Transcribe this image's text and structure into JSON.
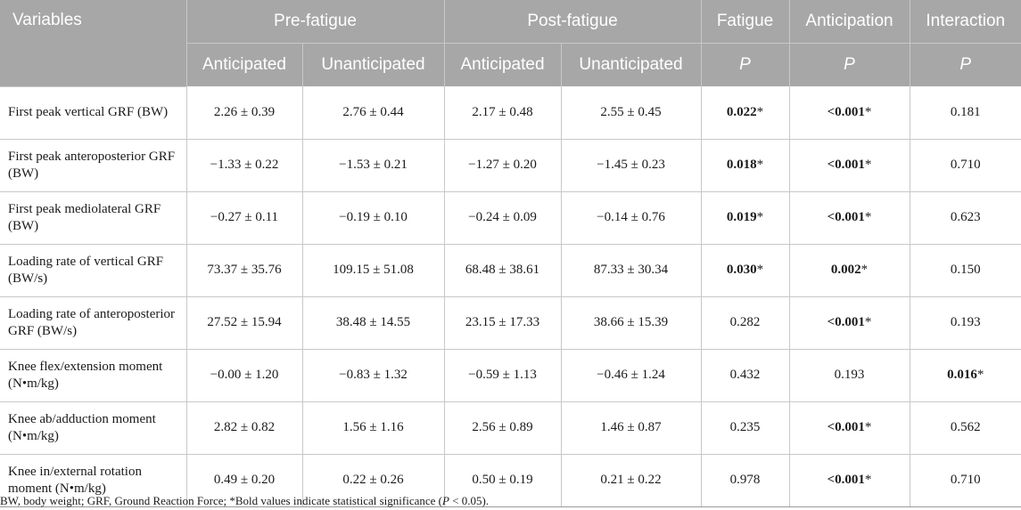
{
  "header": {
    "variables": "Variables",
    "pre_fatigue": "Pre-fatigue",
    "post_fatigue": "Post-fatigue",
    "fatigue": "Fatigue",
    "anticipation": "Anticipation",
    "interaction": "Interaction",
    "anticipated": "Anticipated",
    "unanticipated": "Unanticipated",
    "p": "P"
  },
  "rows": [
    {
      "variable": "First peak vertical GRF (BW)",
      "pre_ant": "2.26 ± 0.39",
      "pre_unant": "2.76 ± 0.44",
      "post_ant": "2.17 ± 0.48",
      "post_unant": "2.55 ± 0.45",
      "fatigue_p": "0.022",
      "fatigue_mark": "*",
      "anticipation_p": "<0.001",
      "anticipation_mark": "*",
      "interaction_p": "0.181",
      "interaction_mark": ""
    },
    {
      "variable": "First peak anteroposterior GRF (BW)",
      "pre_ant": "−1.33 ± 0.22",
      "pre_unant": "−1.53 ± 0.21",
      "post_ant": "−1.27 ± 0.20",
      "post_unant": "−1.45 ± 0.23",
      "fatigue_p": "0.018",
      "fatigue_mark": "*",
      "anticipation_p": "<0.001",
      "anticipation_mark": "*",
      "interaction_p": "0.710",
      "interaction_mark": ""
    },
    {
      "variable": "First peak mediolateral GRF (BW)",
      "pre_ant": "−0.27 ± 0.11",
      "pre_unant": "−0.19 ± 0.10",
      "post_ant": "−0.24 ± 0.09",
      "post_unant": "−0.14 ± 0.76",
      "fatigue_p": "0.019",
      "fatigue_mark": "*",
      "anticipation_p": "<0.001",
      "anticipation_mark": "*",
      "interaction_p": "0.623",
      "interaction_mark": ""
    },
    {
      "variable": "Loading rate of vertical GRF (BW/s)",
      "pre_ant": "73.37 ± 35.76",
      "pre_unant": "109.15 ± 51.08",
      "post_ant": "68.48 ± 38.61",
      "post_unant": "87.33 ± 30.34",
      "fatigue_p": "0.030",
      "fatigue_mark": "*",
      "anticipation_p": "0.002",
      "anticipation_mark": "*",
      "interaction_p": "0.150",
      "interaction_mark": ""
    },
    {
      "variable": "Loading rate of anteroposterior GRF (BW/s)",
      "pre_ant": "27.52 ± 15.94",
      "pre_unant": "38.48 ± 14.55",
      "post_ant": "23.15 ± 17.33",
      "post_unant": "38.66 ± 15.39",
      "fatigue_p": "0.282",
      "fatigue_mark": "",
      "anticipation_p": "<0.001",
      "anticipation_mark": "*",
      "interaction_p": "0.193",
      "interaction_mark": ""
    },
    {
      "variable": "Knee flex/extension moment (N•m/kg)",
      "pre_ant": "−0.00 ± 1.20",
      "pre_unant": "−0.83 ± 1.32",
      "post_ant": "−0.59 ± 1.13",
      "post_unant": "−0.46 ± 1.24",
      "fatigue_p": "0.432",
      "fatigue_mark": "",
      "anticipation_p": "0.193",
      "anticipation_mark": "",
      "interaction_p": "0.016",
      "interaction_mark": "*"
    },
    {
      "variable": "Knee ab/adduction moment (N•m/kg)",
      "pre_ant": "2.82 ± 0.82",
      "pre_unant": "1.56 ± 1.16",
      "post_ant": "2.56 ± 0.89",
      "post_unant": "1.46 ± 0.87",
      "fatigue_p": "0.235",
      "fatigue_mark": "",
      "anticipation_p": "<0.001",
      "anticipation_mark": "*",
      "interaction_p": "0.562",
      "interaction_mark": ""
    },
    {
      "variable": "Knee in/external rotation moment (N•m/kg)",
      "pre_ant": "0.49 ± 0.20",
      "pre_unant": "0.22 ± 0.26",
      "post_ant": "0.50 ± 0.19",
      "post_unant": "0.21 ± 0.22",
      "fatigue_p": "0.978",
      "fatigue_mark": "",
      "anticipation_p": "<0.001",
      "anticipation_mark": "*",
      "interaction_p": "0.710",
      "interaction_mark": ""
    }
  ],
  "footnote": {
    "before": "BW, body weight; GRF, Ground Reaction Force; *Bold values indicate statistical significance (",
    "p": "P",
    "after": " < 0.05)."
  }
}
